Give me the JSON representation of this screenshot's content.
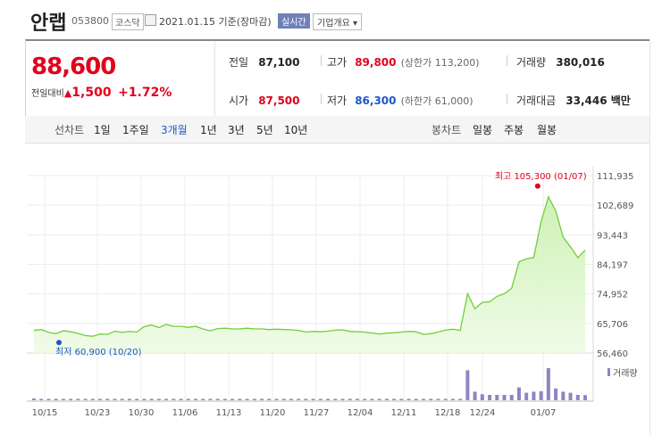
{
  "header": {
    "name": "안랩",
    "code": "053800",
    "market": "코스닥",
    "date": "2021.01.15 기준(장마감)",
    "realtime": "실시간",
    "company_info": "기업개요 ▾"
  },
  "quote": {
    "price": "88,600",
    "change_label": "전일대비",
    "change_arrow": "▲",
    "change": "1,500",
    "change_pct": "+1.72%",
    "prev_close_label": "전일",
    "prev_close": "87,100",
    "high_label": "고가",
    "high": "89,800",
    "upper_limit": "(상한가 113,200)",
    "volume_label": "거래량",
    "volume": "380,016",
    "open_label": "시가",
    "open": "87,500",
    "low_label": "저가",
    "low": "86,300",
    "lower_limit": "(하한가 61,000)",
    "amount_label": "거래대금",
    "amount": "33,446 백만"
  },
  "period_tabs": {
    "label": "선차트",
    "items": [
      "1일",
      "1주일",
      "3개월",
      "1년",
      "3년",
      "5년",
      "10년"
    ],
    "active": "3개월"
  },
  "candle_tabs": {
    "label": "봉차트",
    "items": [
      "일봉",
      "주봉",
      "월봉"
    ]
  },
  "colors": {
    "up": "#e3001b",
    "down": "#1d57c9",
    "line": "#6fcf3a",
    "volume": "#8c86c4",
    "realtime_badge": "#6e81b8"
  },
  "chart_data": {
    "type": "area",
    "yticks": [
      "111,935",
      "102,689",
      "93,443",
      "84,197",
      "74,952",
      "65,706",
      "56,460"
    ],
    "ylim": [
      56460,
      111935
    ],
    "xticks": [
      "10/15",
      "10/23",
      "10/30",
      "11/06",
      "11/13",
      "11/20",
      "11/27",
      "12/04",
      "12/11",
      "12/18",
      "12/24",
      "01/07"
    ],
    "max_label": "최고 105,300 (01/07)",
    "min_label": "최저 60,900 (10/20)",
    "volume_label": "거래량",
    "prices": [
      63500,
      63800,
      62900,
      62500,
      63400,
      63100,
      62600,
      61900,
      61700,
      62400,
      62300,
      63300,
      62900,
      63200,
      63000,
      64700,
      65200,
      64400,
      65400,
      64800,
      64800,
      64500,
      64800,
      64000,
      63400,
      64100,
      64200,
      64000,
      64000,
      64200,
      64000,
      64000,
      63800,
      63900,
      63800,
      63700,
      63500,
      63000,
      63200,
      63100,
      63300,
      63600,
      63700,
      63200,
      63100,
      63000,
      62700,
      62400,
      62700,
      62800,
      63000,
      63200,
      63100,
      62300,
      62500,
      63000,
      63600,
      63900,
      63500,
      75000,
      70300,
      72300,
      72500,
      74200,
      75000,
      76700,
      85000,
      85900,
      86300,
      97500,
      105300,
      100900,
      92700,
      89700,
      86300,
      88600
    ],
    "volumes": [
      8,
      6,
      4,
      5,
      6,
      5,
      4,
      4,
      5,
      5,
      4,
      4,
      5,
      5,
      4,
      6,
      6,
      5,
      6,
      5,
      5,
      4,
      5,
      4,
      4,
      5,
      5,
      4,
      4,
      4,
      4,
      4,
      4,
      4,
      4,
      4,
      4,
      4,
      4,
      4,
      4,
      4,
      4,
      4,
      4,
      4,
      4,
      4,
      4,
      4,
      4,
      4,
      4,
      4,
      4,
      4,
      5,
      4,
      5,
      140,
      40,
      28,
      25,
      25,
      25,
      25,
      60,
      35,
      40,
      42,
      150,
      55,
      40,
      35,
      25,
      24
    ]
  }
}
